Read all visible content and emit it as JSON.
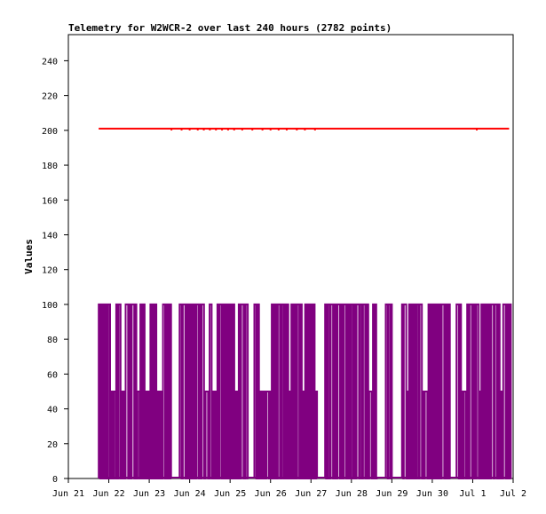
{
  "chart_data": {
    "type": "line",
    "title": "Telemetry for W2WCR-2 over last 240 hours (2782 points)",
    "ylabel": "Values",
    "xlabel": "",
    "ylim": [
      0,
      255
    ],
    "xlim": [
      "Jun 21",
      "Jul 2"
    ],
    "x_ticks": [
      "Jun 21",
      "Jun 22",
      "Jun 23",
      "Jun 24",
      "Jun 25",
      "Jun 26",
      "Jun 27",
      "Jun 28",
      "Jun 29",
      "Jun 30",
      "Jul 1",
      "Jul 2"
    ],
    "y_ticks": [
      0,
      20,
      40,
      60,
      80,
      100,
      120,
      140,
      160,
      180,
      200,
      220,
      240
    ],
    "grid": false,
    "legend": "none",
    "series": [
      {
        "color": "#ff0000",
        "description_value": 201,
        "segments": [
          [
            0.75,
            10.9
          ]
        ],
        "dips": [
          2.55,
          2.8,
          3.0,
          3.2,
          3.35,
          3.5,
          3.65,
          3.8,
          3.95,
          4.1,
          4.3,
          4.55,
          4.8,
          5.0,
          5.2,
          5.4,
          5.65,
          5.85,
          6.1,
          10.1
        ]
      },
      {
        "color": "#800080",
        "levels": [
          0,
          50,
          100
        ],
        "active_ranges": [
          [
            0.75,
            2.55
          ],
          [
            2.75,
            4.45
          ],
          [
            4.6,
            6.15
          ],
          [
            6.35,
            7.65
          ],
          [
            7.85,
            8.0
          ],
          [
            8.25,
            9.45
          ],
          [
            9.6,
            10.95
          ]
        ],
        "mid_points": [
          1.1,
          1.35,
          1.7,
          1.95,
          2.25,
          3.35,
          3.6,
          4.15,
          4.8,
          4.95,
          5.45,
          5.8,
          6.1,
          7.45,
          8.35,
          8.8,
          9.75,
          10.15,
          10.7
        ]
      }
    ]
  }
}
